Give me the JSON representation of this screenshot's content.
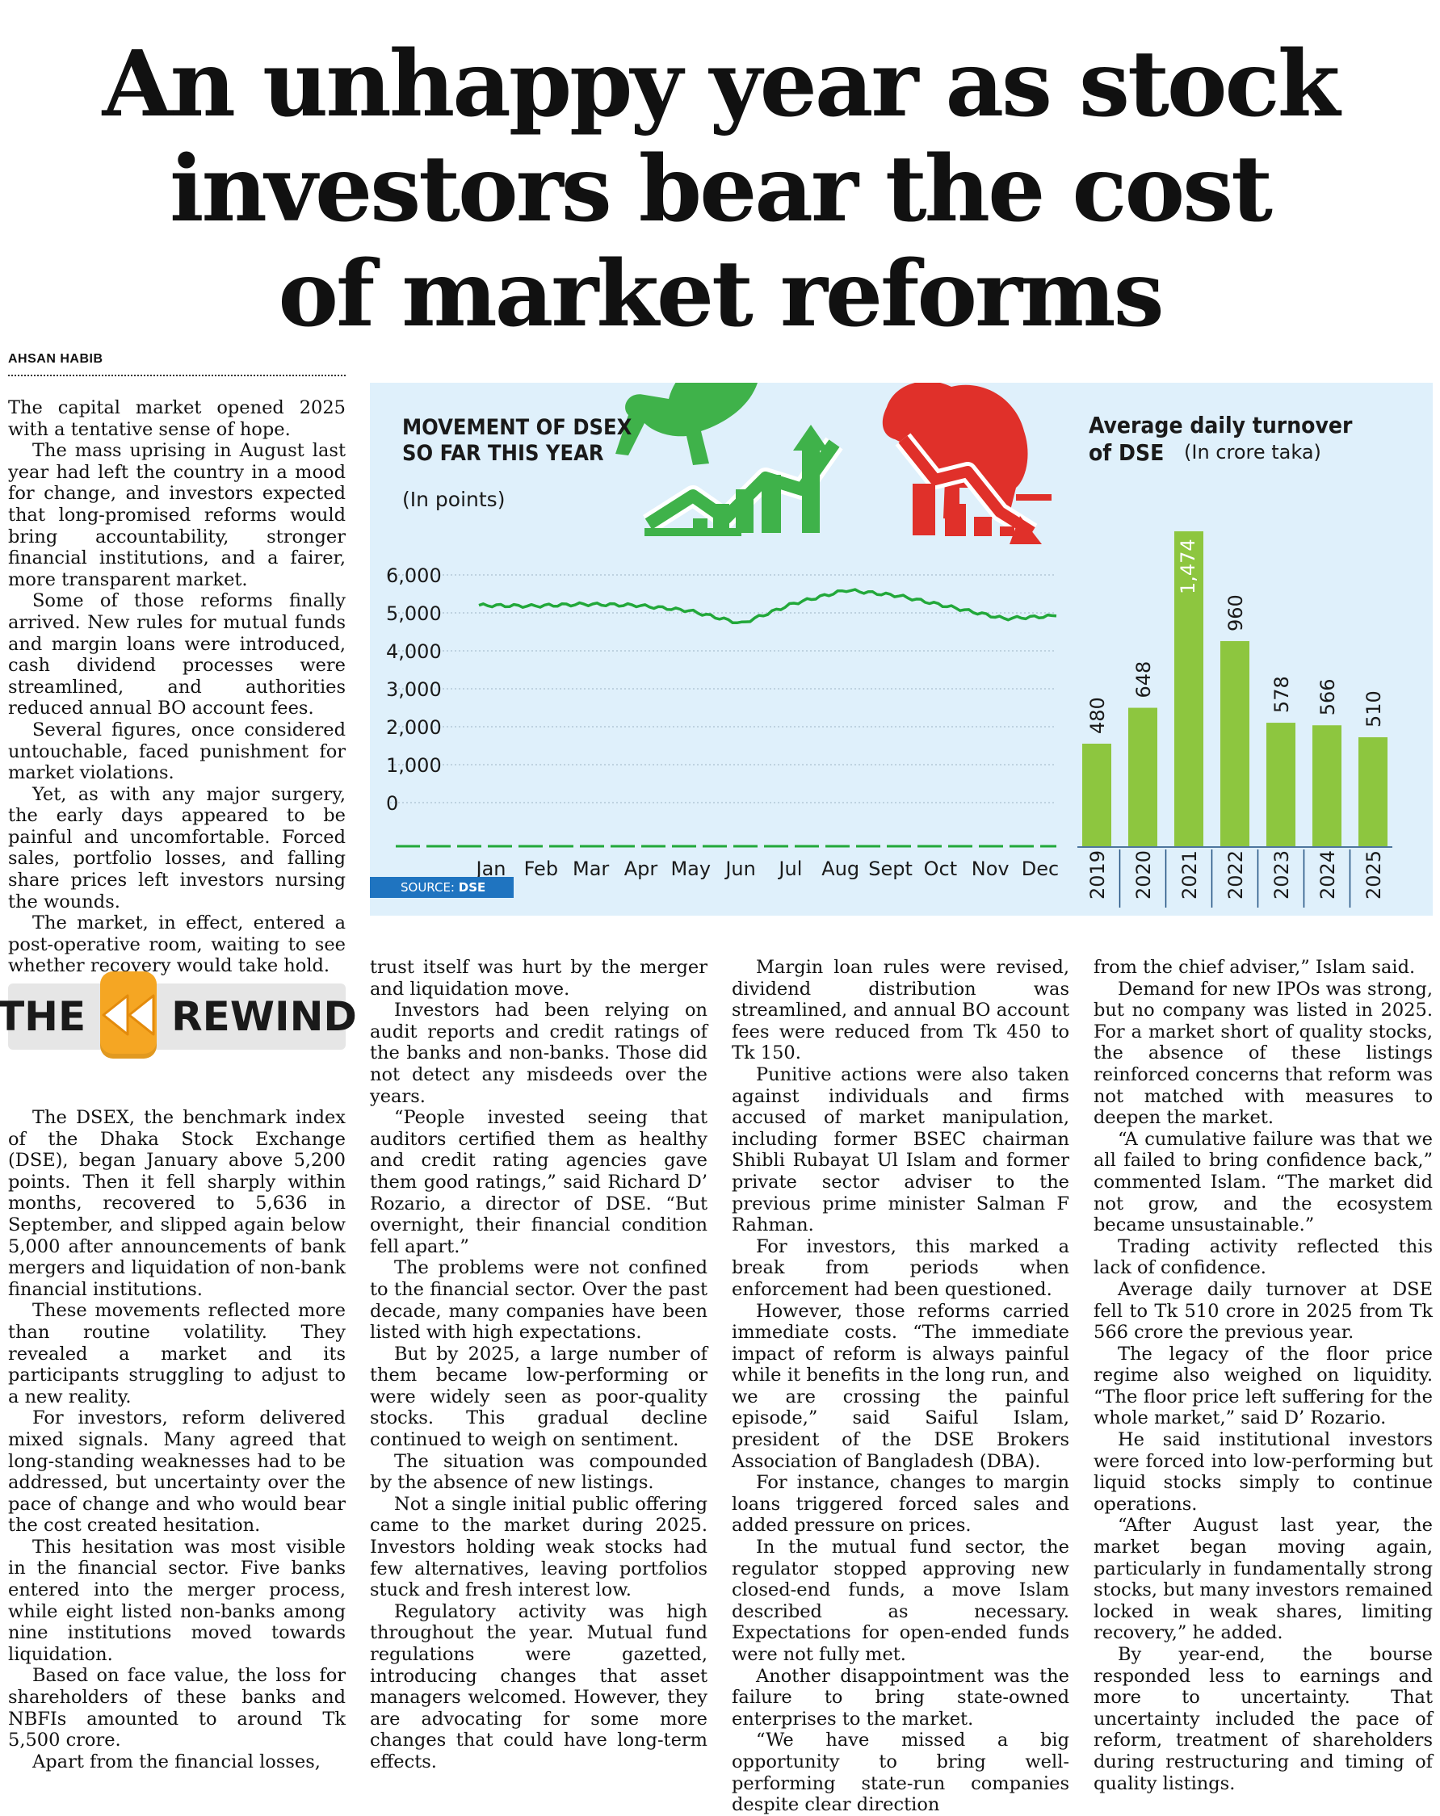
{
  "headline": {
    "line1": "An unhappy year as stock",
    "line2": "investors bear the cost",
    "line3": "of market reforms"
  },
  "byline": "AHSAN HABIB",
  "rewind": {
    "left": "THE",
    "right": "REWIND",
    "icon": "rewind-icon"
  },
  "colors": {
    "line": "#22a83a",
    "bar": "#8dc63f",
    "panel_bg": "#dff0fb",
    "source_bg": "#1f74c0",
    "bull": "#3fb24a",
    "bear": "#e0302a",
    "rewind": "#f5a623"
  },
  "icons": {
    "bull": "bull-icon",
    "bear": "bear-icon"
  },
  "chart_line": {
    "title": "MOVEMENT OF DSEX SO FAR THIS YEAR",
    "unit": "(In points)",
    "yticks": [
      "6,000",
      "5,000",
      "4,000",
      "3,000",
      "2,000",
      "1,000",
      "0"
    ],
    "months": [
      "Jan",
      "Feb",
      "Mar",
      "Apr",
      "May",
      "Jun",
      "Jul",
      "Aug",
      "Sept",
      "Oct",
      "Nov",
      "Dec"
    ],
    "source_label": "SOURCE:",
    "source": "DSE"
  },
  "chart_bar": {
    "title": "Average daily turnover of DSE",
    "title_line1": "Average daily turnover",
    "title_line2": "of DSE",
    "unit": "(In crore taka)",
    "categories": [
      "2019",
      "2020",
      "2021",
      "2022",
      "2023",
      "2024",
      "2025"
    ],
    "labels": [
      "480",
      "648",
      "1,474",
      "960",
      "578",
      "566",
      "510"
    ]
  },
  "chart_data": [
    {
      "type": "line",
      "title": "MOVEMENT OF DSEX SO FAR THIS YEAR",
      "ylabel": "(In points)",
      "ylim": [
        0,
        6000
      ],
      "x": [
        "Jan",
        "Feb",
        "Mar",
        "Apr",
        "May",
        "Jun",
        "Jul",
        "Aug",
        "Sept",
        "Oct",
        "Nov",
        "Dec"
      ],
      "series": [
        {
          "values": [
            5200,
            5180,
            5230,
            5200,
            5060,
            4720,
            5250,
            5600,
            5450,
            5150,
            4850,
            4920
          ]
        }
      ],
      "grid": true
    },
    {
      "type": "bar",
      "title": "Average daily turnover of DSE",
      "ylabel": "(In crore taka)",
      "categories": [
        "2019",
        "2020",
        "2021",
        "2022",
        "2023",
        "2024",
        "2025"
      ],
      "values": [
        480,
        648,
        1474,
        960,
        578,
        566,
        510
      ]
    }
  ],
  "col1": [
    {
      "text": "The capital market opened 2025 with a tentative sense of hope.",
      "indent": false
    },
    {
      "text": "The mass uprising in August last year had left the country in a mood for change, and investors expected that long-promised reforms would bring accountability, stronger financial institutions, and a fairer, more transparent market."
    },
    {
      "text": "Some of those reforms finally arrived. New rules for mutual funds and margin loans were introduced, cash dividend processes were streamlined, and authorities reduced annual BO account fees."
    },
    {
      "text": "Several figures, once considered untouchable, faced punishment for market violations."
    },
    {
      "text": "Yet, as with any major surgery, the early days appeared to be painful and uncomfortable. Forced sales, portfolio losses, and falling share prices left investors nursing the wounds."
    },
    {
      "text": "The market, in effect, entered a post-operative room, waiting to see whether recovery would take hold."
    }
  ],
  "col1b": [
    "The DSEX, the benchmark index of the Dhaka Stock Exchange (DSE), began January above 5,200 points. Then it fell sharply within months, recovered to 5,636 in September, and slipped again below 5,000 after announcements of bank mergers and liquidation of non-bank financial institutions.",
    "These movements reflected more than routine volatility. They revealed a market and its participants struggling to adjust to a new reality.",
    "For investors, reform delivered mixed signals. Many agreed that long-standing weaknesses had to be addressed, but uncertainty over the pace of change and who would bear the cost created hesitation.",
    "This hesitation was most visible in the financial sector. Five banks entered into the merger process, while eight listed non-banks among nine institutions moved towards liquidation.",
    "Based on face value, the loss for shareholders of these banks and NBFIs amounted to around Tk 5,500 crore.",
    "Apart from the financial losses,"
  ],
  "col2": [
    "trust itself was hurt by the merger and liquidation move.",
    "Investors had been relying on audit reports and credit ratings of the banks and non-banks. Those did not detect any misdeeds over the years.",
    "“People invested seeing that auditors certified them as healthy and credit rating agencies gave them good ratings,” said Richard D’ Rozario, a director of DSE. “But overnight, their financial condition fell apart.”",
    "The problems were not confined to the financial sector. Over the past decade, many companies have been listed with high expectations.",
    "But by 2025, a large number of them became low-performing or were widely seen as poor-quality stocks. This gradual decline continued to weigh on sentiment.",
    "The situation was compounded by the absence of new listings.",
    "Not a single initial public offering came to the market during 2025. Investors holding weak stocks had few alternatives, leaving portfolios stuck and fresh interest low.",
    "Regulatory activity was high throughout the year. Mutual fund regulations were gazetted, introducing changes that asset managers welcomed. However, they are advocating for some more changes that could have long-term effects."
  ],
  "col3": [
    "Margin loan rules were revised, dividend distribution was streamlined, and annual BO account fees were reduced from Tk 450 to Tk 150.",
    "Punitive actions were also taken against individuals and firms accused of market manipulation, including former BSEC chairman Shibli Rubayat Ul Islam and former private sector adviser to the previous prime minister Salman F Rahman.",
    "For investors, this marked a break from periods when enforcement had been questioned.",
    "However, those reforms carried immediate costs. “The immediate impact of reform is always painful while it benefits in the long run, and we are crossing the painful episode,” said Saiful Islam, president of the DSE Brokers Association of Bangladesh (DBA).",
    "For instance, changes to margin loans triggered forced sales and added pressure on prices.",
    "In the mutual fund sector, the regulator stopped approving new closed-end funds, a move Islam described as necessary. Expectations for open-ended funds were not fully met.",
    "Another disappointment was the failure to bring state-owned enterprises to the market.",
    "“We have missed a big opportunity to bring well-performing state-run companies despite clear direction"
  ],
  "col4": [
    "from the chief adviser,” Islam said.",
    "Demand for new IPOs was strong, but no company was listed in 2025. For a market short of quality stocks, the absence of these listings reinforced concerns that reform was not matched with measures to deepen the market.",
    "“A cumulative failure was that we all failed to bring confidence back,” commented Islam. “The market did not grow, and the ecosystem became unsustainable.”",
    "Trading activity reflected this lack of confidence.",
    "Average daily turnover at DSE fell to Tk 510 crore in 2025 from Tk 566 crore the previous year.",
    "The legacy of the floor price regime also weighed on liquidity. “The floor price left suffering for the whole market,” said D’ Rozario.",
    "He said institutional investors were forced into low-performing but liquid stocks simply to continue operations.",
    "“After August last year, the market began moving again, particularly in fundamentally strong stocks, but many investors remained locked in weak shares, limiting recovery,” he added.",
    "By year-end, the bourse responded less to earnings and more to uncertainty. That uncertainty included the pace of reform, treatment of shareholders during restructuring and timing of quality listings."
  ]
}
